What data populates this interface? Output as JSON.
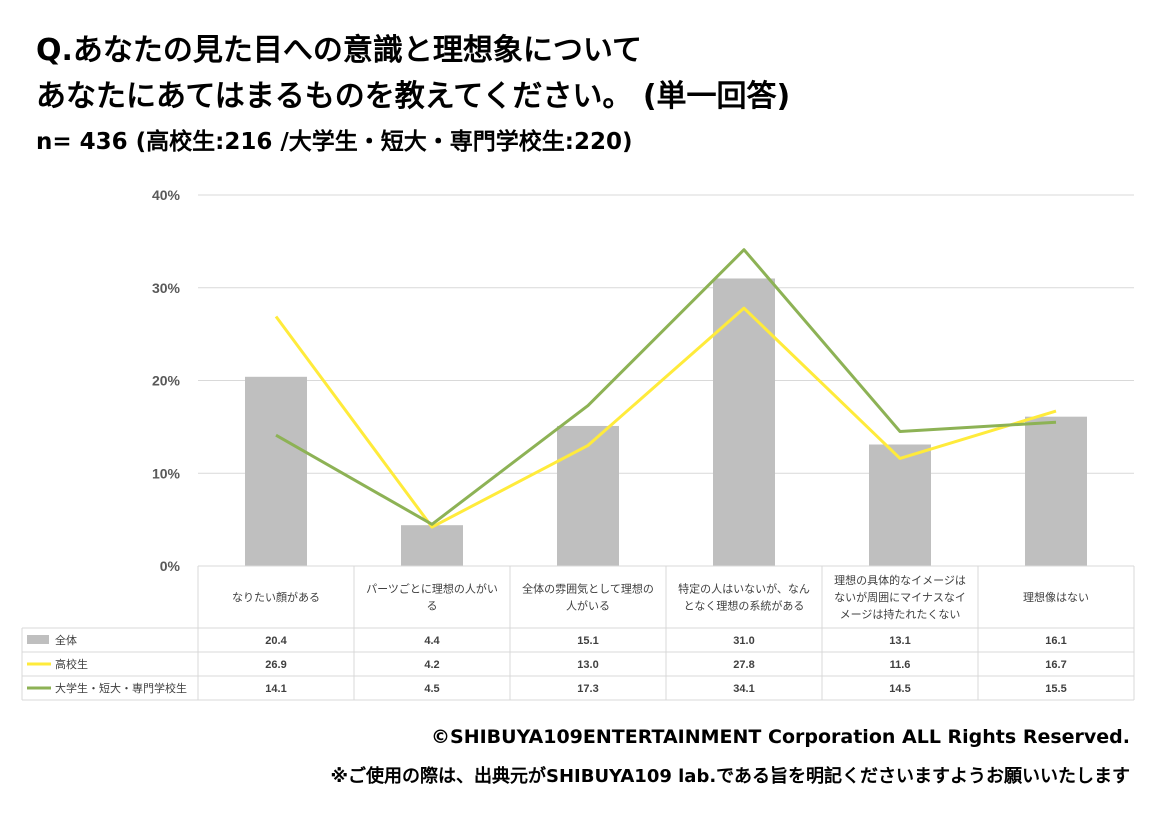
{
  "title_line1": "Q.あなたの見た目への意識と理想象について",
  "title_line2": "あなたにあてはまるものを教えてください。 (単一回答)",
  "subtitle": "n= 436 (高校生:216 /大学生・短大・専門学校生:220)",
  "footer_copyright": "©SHIBUYA109ENTERTAINMENT Corporation ALL Rights Reserved.",
  "footer_note": "※ご使用の際は、出典元がSHIBUYA109 lab.である旨を明記くださいますようお願いいたします",
  "chart_data": {
    "type": "bar",
    "ylim": [
      0,
      40
    ],
    "yticks": [
      "0%",
      "10%",
      "20%",
      "30%",
      "40%"
    ],
    "categories": [
      [
        "なりたい顔がある"
      ],
      [
        "パーツごとに理想の人がい",
        "る"
      ],
      [
        "全体の雰囲気として理想の",
        "人がいる"
      ],
      [
        "特定の人はいないが、なん",
        "となく理想の系統がある"
      ],
      [
        "理想の具体的なイメージは",
        "ないが周囲にマイナスなイ",
        "メージは持たれたくない"
      ],
      [
        "理想像はない"
      ]
    ],
    "series": [
      {
        "name": "全体",
        "kind": "bar",
        "color": "#bfbfbf",
        "values": [
          20.4,
          4.4,
          15.1,
          31.0,
          13.1,
          16.1
        ]
      },
      {
        "name": "高校生",
        "kind": "line",
        "color": "#ffeb3b",
        "values": [
          26.9,
          4.2,
          13.0,
          27.8,
          11.6,
          16.7
        ]
      },
      {
        "name": "大学生・短大・専門学校生",
        "kind": "line",
        "color": "#8db255",
        "values": [
          14.1,
          4.5,
          17.3,
          34.1,
          14.5,
          15.5
        ]
      }
    ],
    "grid": true,
    "legend": "data-table"
  }
}
